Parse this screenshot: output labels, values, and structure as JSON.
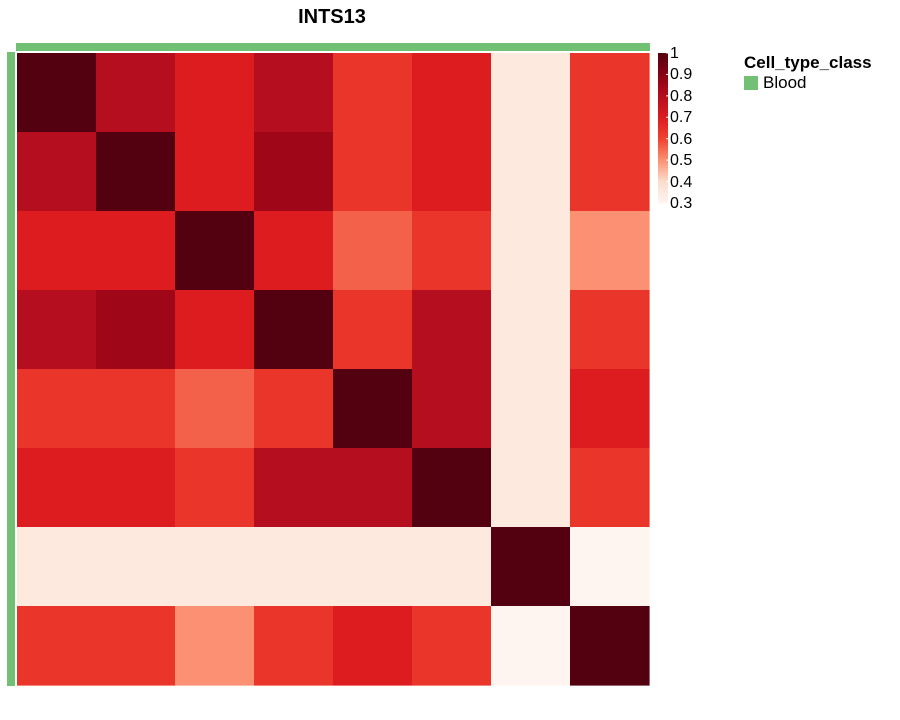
{
  "chart_data": {
    "type": "heatmap",
    "title": "INTS13",
    "rows": 8,
    "cols": 8,
    "matrix": [
      [
        1.0,
        0.8,
        0.7,
        0.8,
        0.63,
        0.7,
        0.35,
        0.63
      ],
      [
        0.8,
        1.0,
        0.7,
        0.85,
        0.63,
        0.7,
        0.35,
        0.63
      ],
      [
        0.7,
        0.7,
        1.0,
        0.7,
        0.56,
        0.63,
        0.35,
        0.5
      ],
      [
        0.8,
        0.85,
        0.7,
        1.0,
        0.63,
        0.8,
        0.35,
        0.63
      ],
      [
        0.63,
        0.63,
        0.56,
        0.63,
        1.0,
        0.8,
        0.35,
        0.7
      ],
      [
        0.7,
        0.7,
        0.63,
        0.8,
        0.8,
        1.0,
        0.35,
        0.63
      ],
      [
        0.35,
        0.35,
        0.35,
        0.35,
        0.35,
        0.35,
        1.0,
        0.3
      ],
      [
        0.63,
        0.63,
        0.5,
        0.63,
        0.7,
        0.63,
        0.3,
        1.0
      ]
    ],
    "color_scale": {
      "range": [
        0.3,
        1.0
      ],
      "ticks": [
        "1",
        "0.9",
        "0.8",
        "0.7",
        "0.6",
        "0.5",
        "0.4",
        "0.3"
      ],
      "stops": [
        {
          "value": 0.3,
          "color": "#fff5f0"
        },
        {
          "value": 0.4,
          "color": "#fcdccc"
        },
        {
          "value": 0.5,
          "color": "#fb9172"
        },
        {
          "value": 0.6,
          "color": "#f0412f"
        },
        {
          "value": 0.7,
          "color": "#dc1c1f"
        },
        {
          "value": 0.8,
          "color": "#b50e1e"
        },
        {
          "value": 0.9,
          "color": "#880014"
        },
        {
          "value": 1.0,
          "color": "#530010"
        }
      ]
    },
    "annotation": {
      "name": "Cell_type_class",
      "category": "Blood",
      "color": "#72c073"
    },
    "legend_placement": "right"
  }
}
